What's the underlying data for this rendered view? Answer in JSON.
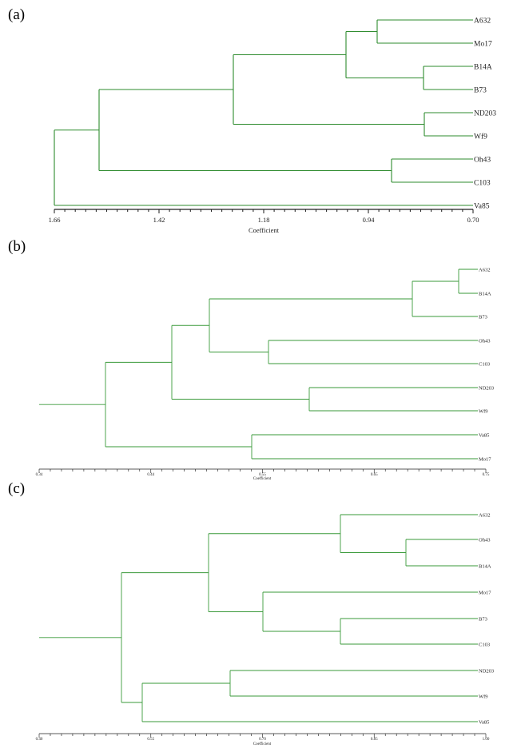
{
  "figure": {
    "panels": [
      {
        "label": "(a)",
        "axis_title": "Coefficient",
        "ticks": [
          "1.66",
          "1.42",
          "1.18",
          "0.94",
          "0.70"
        ],
        "leaves": [
          "A632",
          "Mo17",
          "B14A",
          "B73",
          "ND203",
          "Wf9",
          "Oh43",
          "C103",
          "Va85"
        ],
        "color": "#2e8b2e"
      },
      {
        "label": "(b)",
        "axis_title": "Coefficient",
        "ticks": [
          "0.34",
          "0.44",
          "0.55",
          "0.65",
          "0.75"
        ],
        "leaves": [
          "A632",
          "B14A",
          "B73",
          "Oh43",
          "C103",
          "ND203",
          "Wf9",
          "Va85",
          "Mo17"
        ],
        "color": "#3a9a3a"
      },
      {
        "label": "(c)",
        "axis_title": "Coefficient",
        "ticks": [
          "0.40",
          "0.55",
          "0.70",
          "0.85",
          "1.00"
        ],
        "leaves": [
          "A632",
          "Oh43",
          "B14A",
          "Mo17",
          "B73",
          "C103",
          "ND203",
          "Wf9",
          "Va85"
        ],
        "color": "#3a9a3a"
      }
    ]
  }
}
